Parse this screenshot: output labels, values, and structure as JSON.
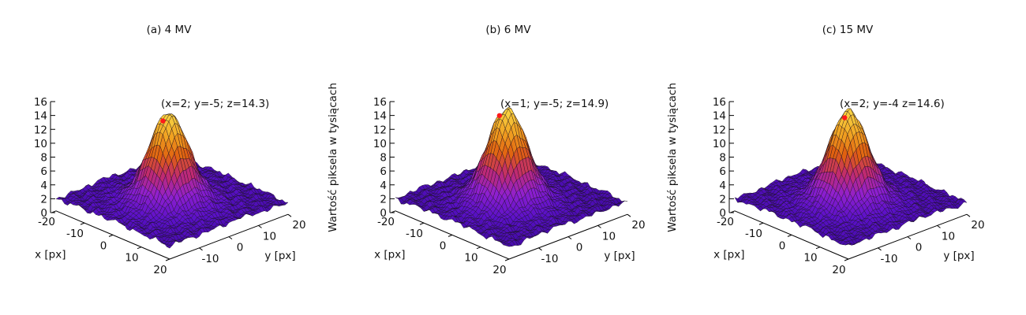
{
  "chart_data": [
    {
      "type": "surface",
      "title": "(a) 4 MV",
      "xlabel": "x [px]",
      "ylabel": "y [px]",
      "zlabel": "",
      "xlim": [
        -20,
        20
      ],
      "ylim": [
        -20,
        20
      ],
      "zlim": [
        0,
        16
      ],
      "x_ticks": [
        "-20",
        "-10",
        "0",
        "10",
        "20"
      ],
      "y_ticks": [
        "-10",
        "0",
        "10",
        "20"
      ],
      "z_ticks": [
        "0",
        "2",
        "4",
        "6",
        "8",
        "10",
        "12",
        "14",
        "16"
      ],
      "peak": {
        "x": 2,
        "y": -5,
        "z": 14.3
      },
      "peak_label": "(x=2; y=-5; z=14.3)",
      "colormap": [
        "#1a0066",
        "#5a10c8",
        "#9020d0",
        "#c02a70",
        "#e06010",
        "#f0a020",
        "#f8d040"
      ]
    },
    {
      "type": "surface",
      "title": "(b) 6 MV",
      "xlabel": "x [px]",
      "ylabel": "y [px]",
      "zlabel": "Wartość piksela w tysiącach",
      "xlim": [
        -20,
        20
      ],
      "ylim": [
        -20,
        20
      ],
      "zlim": [
        0,
        16
      ],
      "x_ticks": [
        "-20",
        "-10",
        "0",
        "10",
        "20"
      ],
      "y_ticks": [
        "-10",
        "0",
        "10",
        "20"
      ],
      "z_ticks": [
        "0",
        "2",
        "4",
        "6",
        "8",
        "10",
        "12",
        "14",
        "16"
      ],
      "peak": {
        "x": 1,
        "y": -5,
        "z": 14.9
      },
      "peak_label": "(x=1; y=-5; z=14.9)",
      "colormap": [
        "#1a0066",
        "#5a10c8",
        "#9020d0",
        "#c02a70",
        "#e06010",
        "#f0a020",
        "#f8d040"
      ]
    },
    {
      "type": "surface",
      "title": "(c) 15 MV",
      "xlabel": "x [px]",
      "ylabel": "y [px]",
      "zlabel": "Wartość piksela w tysiącach",
      "xlim": [
        -20,
        20
      ],
      "ylim": [
        -20,
        20
      ],
      "zlim": [
        0,
        16
      ],
      "x_ticks": [
        "-20",
        "-10",
        "0",
        "10",
        "20"
      ],
      "y_ticks": [
        "-10",
        "0",
        "10",
        "20"
      ],
      "z_ticks": [
        "0",
        "2",
        "4",
        "6",
        "8",
        "10",
        "12",
        "14",
        "16"
      ],
      "peak": {
        "x": 2,
        "y": -4,
        "z": 14.6
      },
      "peak_label": "(x=2; y=-4 z=14.6)",
      "colormap": [
        "#1a0066",
        "#5a10c8",
        "#9020d0",
        "#c02a70",
        "#e06010",
        "#f0a020",
        "#f8d040"
      ]
    }
  ]
}
